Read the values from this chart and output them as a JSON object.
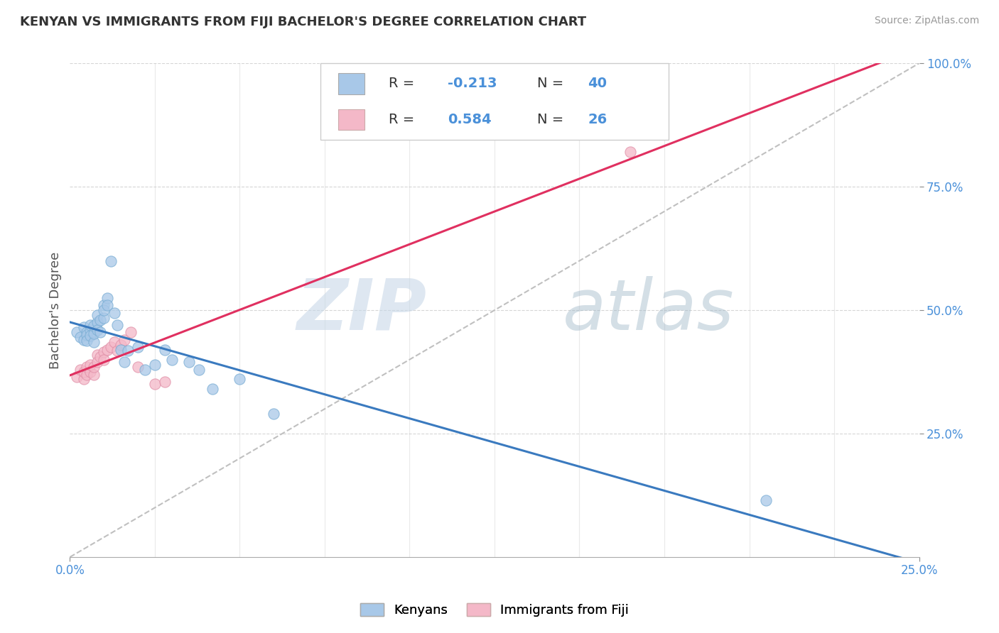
{
  "title": "KENYAN VS IMMIGRANTS FROM FIJI BACHELOR'S DEGREE CORRELATION CHART",
  "source": "Source: ZipAtlas.com",
  "ylabel": "Bachelor's Degree",
  "xlim": [
    0.0,
    0.25
  ],
  "ylim": [
    0.0,
    1.0
  ],
  "kenyan_color": "#a8c8e8",
  "kenyan_edge_color": "#7aaed4",
  "fiji_color": "#f4b8c8",
  "fiji_edge_color": "#e090a8",
  "kenyan_line_color": "#3a7abf",
  "fiji_line_color": "#e03060",
  "trend_line_color": "#c0c0c0",
  "R_kenyan": -0.213,
  "N_kenyan": 40,
  "R_fiji": 0.584,
  "N_fiji": 26,
  "kenyan_scatter_x": [
    0.002,
    0.003,
    0.004,
    0.004,
    0.005,
    0.005,
    0.005,
    0.006,
    0.006,
    0.006,
    0.007,
    0.007,
    0.007,
    0.008,
    0.008,
    0.008,
    0.009,
    0.009,
    0.01,
    0.01,
    0.01,
    0.011,
    0.011,
    0.012,
    0.013,
    0.014,
    0.015,
    0.016,
    0.017,
    0.02,
    0.022,
    0.025,
    0.028,
    0.03,
    0.035,
    0.038,
    0.042,
    0.05,
    0.06,
    0.205
  ],
  "kenyan_scatter_y": [
    0.455,
    0.445,
    0.465,
    0.44,
    0.455,
    0.45,
    0.438,
    0.46,
    0.448,
    0.47,
    0.435,
    0.452,
    0.468,
    0.475,
    0.46,
    0.49,
    0.48,
    0.455,
    0.51,
    0.485,
    0.5,
    0.525,
    0.51,
    0.6,
    0.495,
    0.47,
    0.42,
    0.395,
    0.418,
    0.425,
    0.38,
    0.39,
    0.42,
    0.4,
    0.395,
    0.38,
    0.34,
    0.36,
    0.29,
    0.115
  ],
  "fiji_scatter_x": [
    0.002,
    0.003,
    0.004,
    0.004,
    0.005,
    0.005,
    0.006,
    0.006,
    0.007,
    0.007,
    0.008,
    0.008,
    0.009,
    0.01,
    0.01,
    0.011,
    0.012,
    0.013,
    0.014,
    0.015,
    0.016,
    0.018,
    0.02,
    0.025,
    0.028,
    0.165
  ],
  "fiji_scatter_y": [
    0.365,
    0.38,
    0.36,
    0.375,
    0.37,
    0.385,
    0.375,
    0.39,
    0.37,
    0.385,
    0.41,
    0.395,
    0.405,
    0.415,
    0.4,
    0.42,
    0.425,
    0.435,
    0.418,
    0.43,
    0.44,
    0.455,
    0.385,
    0.35,
    0.355,
    0.82
  ],
  "watermark_zip": "ZIP",
  "watermark_atlas": "atlas"
}
